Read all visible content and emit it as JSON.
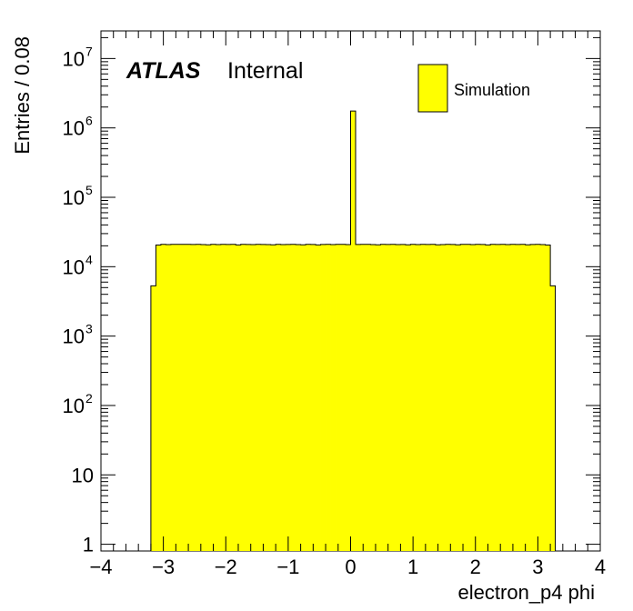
{
  "chart_data": {
    "type": "bar",
    "style": "histogram",
    "xlabel": "electron_p4 phi",
    "ylabel": "Entries / 0.08",
    "xlim": [
      -4,
      4
    ],
    "ylim": [
      0.8,
      25000000
    ],
    "yscale": "log",
    "x_ticks": [
      -4,
      -3,
      -2,
      -1,
      0,
      1,
      2,
      3,
      4
    ],
    "x_tick_labels": [
      "−4",
      "−3",
      "−2",
      "−1",
      "0",
      "1",
      "2",
      "3",
      "4"
    ],
    "y_ticks": [
      {
        "value": 1,
        "base": "1",
        "exp": ""
      },
      {
        "value": 10,
        "base": "10",
        "exp": ""
      },
      {
        "value": 100,
        "base": "10",
        "exp": "2"
      },
      {
        "value": 1000,
        "base": "10",
        "exp": "3"
      },
      {
        "value": 10000,
        "base": "10",
        "exp": "4"
      },
      {
        "value": 100000,
        "base": "10",
        "exp": "5"
      },
      {
        "value": 1000000,
        "base": "10",
        "exp": "6"
      },
      {
        "value": 10000000,
        "base": "10",
        "exp": "7"
      }
    ],
    "atlas_label": "ATLAS",
    "atlas_sublabel": "Internal",
    "legend": {
      "position": "top-right",
      "entries": [
        {
          "name": "Simulation",
          "color": "#ffff00"
        }
      ]
    },
    "fill_color": "#ffff00",
    "line_color": "#000000",
    "bin_edges_start": -3.2,
    "bin_width": 0.08,
    "values": [
      5300,
      20500,
      21000,
      20800,
      21000,
      21000,
      21000,
      21000,
      20900,
      21000,
      20800,
      20700,
      21000,
      20800,
      21000,
      20900,
      21000,
      20600,
      21000,
      20900,
      20800,
      21000,
      20900,
      20800,
      20700,
      21000,
      20800,
      20900,
      21000,
      20800,
      20700,
      21000,
      20900,
      20600,
      20900,
      21000,
      20800,
      21000,
      21000,
      20800,
      1750000,
      20900,
      21000,
      21000,
      20800,
      20700,
      21000,
      20900,
      21000,
      20800,
      20900,
      20700,
      21000,
      20800,
      21000,
      20900,
      21000,
      20700,
      20800,
      21000,
      20900,
      20700,
      21000,
      21000,
      20800,
      21000,
      20900,
      20600,
      21000,
      20900,
      21000,
      20800,
      21000,
      20900,
      21000,
      20700,
      20900,
      21000,
      20800,
      20500,
      5300
    ]
  }
}
